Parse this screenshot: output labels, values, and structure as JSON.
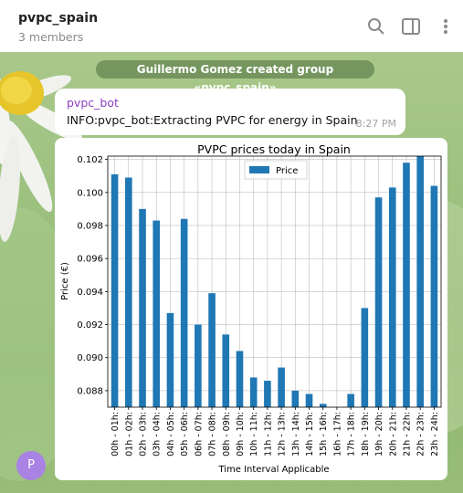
{
  "header": {
    "title": "pvpc_spain",
    "subtitle": "3 members"
  },
  "messages": {
    "service": "Guillermo Gomez created group «pvpc_spain»",
    "sender": "pvpc_bot",
    "text": "INFO:pvpc_bot:Extracting PVPC for energy in Spain",
    "time": "8:27 PM"
  },
  "avatar": {
    "letter": "P",
    "color": "#a983e4"
  },
  "icons": [
    "search-icon",
    "sidebar-toggle-icon",
    "more-vertical-icon"
  ],
  "colors": {
    "bar": "#1f77b4",
    "sender": "#8b3fbf"
  },
  "chart_data": {
    "type": "bar",
    "title": "PVPC prices today in Spain",
    "xlabel": "Time Interval Applicable",
    "ylabel": "Price (€)",
    "legend": "Price",
    "legend_position": "top-center",
    "ylim": [
      0.087,
      0.1022
    ],
    "yticks": [
      "0.088",
      "0.090",
      "0.092",
      "0.094",
      "0.096",
      "0.098",
      "0.100",
      "0.102"
    ],
    "ytick_values": [
      0.088,
      0.09,
      0.092,
      0.094,
      0.096,
      0.098,
      0.1,
      0.102
    ],
    "categories": [
      "00h - 01h:",
      "01h - 02h:",
      "02h - 03h:",
      "03h - 04h:",
      "04h - 05h:",
      "05h - 06h:",
      "06h - 07h:",
      "07h - 08h:",
      "08h - 09h:",
      "09h - 10h:",
      "10h - 11h:",
      "11h - 12h:",
      "12h - 13h:",
      "13h - 14h:",
      "14h - 15h:",
      "15h - 16h:",
      "16h - 17h:",
      "17h - 18h:",
      "18h - 19h:",
      "19h - 20h:",
      "20h - 21h:",
      "21h - 22h:",
      "22h - 23h:",
      "23h - 24h:"
    ],
    "values": [
      0.1011,
      0.1009,
      0.099,
      0.0983,
      0.0927,
      0.0984,
      0.092,
      0.0939,
      0.0914,
      0.0904,
      0.0888,
      0.0886,
      0.0894,
      0.088,
      0.0878,
      0.0872,
      0.0868,
      0.0878,
      0.093,
      0.0997,
      0.1003,
      0.1018,
      0.1022,
      0.1004
    ],
    "grid": true
  }
}
